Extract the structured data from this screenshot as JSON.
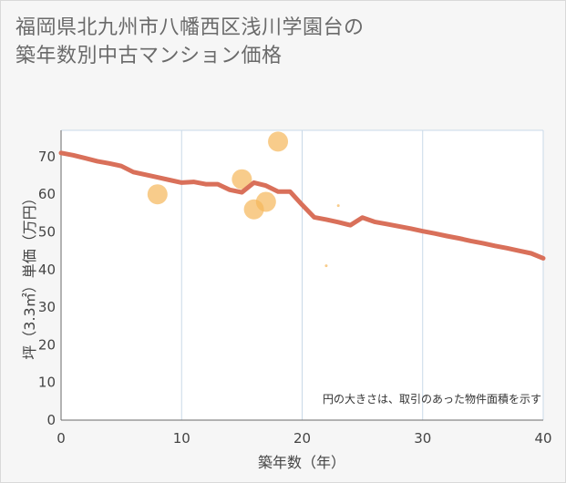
{
  "title_line1": "福岡県北九州市八幡西区浅川学園台の",
  "title_line2": "築年数別中古マンション価格",
  "chart_data": {
    "type": "scatter",
    "title": "福岡県北九州市八幡西区浅川学園台の築年数別中古マンション価格",
    "xlabel": "築年数（年）",
    "ylabel": "坪（3.3㎡）単価（万円）",
    "xlim": [
      0,
      40
    ],
    "ylim": [
      0,
      77
    ],
    "xticks": [
      0,
      10,
      20,
      30,
      40
    ],
    "yticks": [
      0,
      10,
      20,
      30,
      40,
      50,
      60,
      70
    ],
    "grid": true,
    "note": "円の大きさは、取引のあった物件面積を示す",
    "colors": {
      "trend": "#d9705a",
      "bubble": "#f5b75a"
    },
    "points": [
      {
        "x": 8,
        "y": 60,
        "size": "large"
      },
      {
        "x": 15,
        "y": 64,
        "size": "large"
      },
      {
        "x": 16,
        "y": 56,
        "size": "large"
      },
      {
        "x": 17,
        "y": 58,
        "size": "large"
      },
      {
        "x": 18,
        "y": 74,
        "size": "large"
      },
      {
        "x": 22,
        "y": 41,
        "size": "tiny"
      },
      {
        "x": 23,
        "y": 57,
        "size": "tiny"
      }
    ],
    "trend": {
      "name": "trend",
      "x": [
        0,
        1,
        2,
        3,
        4,
        5,
        6,
        7,
        8,
        9,
        10,
        11,
        12,
        13,
        14,
        15,
        16,
        17,
        18,
        19,
        20,
        21,
        22,
        23,
        24,
        25,
        26,
        27,
        28,
        29,
        30,
        31,
        32,
        33,
        34,
        35,
        36,
        37,
        38,
        39,
        40
      ],
      "y": [
        71,
        70.4,
        69.6,
        68.8,
        68.2,
        67.5,
        65.9,
        65.2,
        64.5,
        63.8,
        63.1,
        63.3,
        62.7,
        62.7,
        61.2,
        60.5,
        63.1,
        62.3,
        60.7,
        60.7,
        57.2,
        53.9,
        53.3,
        52.6,
        51.8,
        53.8,
        52.7,
        52.1,
        51.5,
        50.9,
        50.2,
        49.6,
        48.9,
        48.3,
        47.6,
        47.0,
        46.3,
        45.7,
        45.0,
        44.3,
        43.0
      ]
    }
  }
}
